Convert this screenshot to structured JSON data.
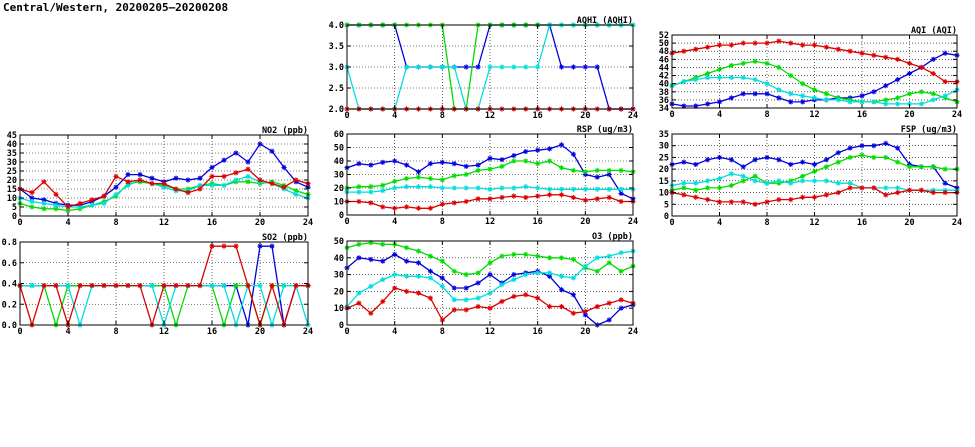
{
  "title": "Central/Western, 20200205—20200208",
  "colors": [
    "#0000dd",
    "#00dd00",
    "#00dddd",
    "#dd0000"
  ],
  "chart_data": [
    {
      "id": "aqhi",
      "type": "line",
      "title": "AQHI (AQHI)",
      "xlim": [
        0,
        24
      ],
      "xticks": [
        "0",
        "4",
        "8",
        "12",
        "16",
        "20",
        "24"
      ],
      "ylim": [
        2,
        4
      ],
      "yticks": [
        "2.0",
        "2.5",
        "3.0",
        "3.5",
        "4.0"
      ],
      "grid": true,
      "x": [
        0,
        1,
        2,
        3,
        4,
        5,
        6,
        7,
        8,
        9,
        10,
        11,
        12,
        13,
        14,
        15,
        16,
        17,
        18,
        19,
        20,
        21,
        22,
        23,
        24
      ],
      "series": [
        {
          "values": [
            4,
            4,
            4,
            4,
            4,
            3,
            3,
            3,
            3,
            3,
            3,
            3,
            4,
            4,
            4,
            4,
            4,
            4,
            3,
            3,
            3,
            3,
            2,
            2,
            2
          ]
        },
        {
          "values": [
            4,
            4,
            4,
            4,
            4,
            4,
            4,
            4,
            4,
            2,
            2,
            4,
            4,
            4,
            4,
            4,
            4,
            4,
            4,
            4,
            4,
            4,
            4,
            4,
            4
          ]
        },
        {
          "values": [
            3,
            2,
            2,
            2,
            2,
            3,
            3,
            3,
            3,
            3,
            2,
            2,
            3,
            3,
            3,
            3,
            3,
            4,
            4,
            4,
            4,
            4,
            4,
            4,
            4
          ]
        },
        {
          "values": [
            2,
            2,
            2,
            2,
            2,
            2,
            2,
            2,
            2,
            2,
            2,
            2,
            2,
            2,
            2,
            2,
            2,
            2,
            2,
            2,
            2,
            2,
            2,
            2,
            2
          ]
        }
      ]
    },
    {
      "id": "aqi",
      "type": "line",
      "title": "AQI (AQI)",
      "xlim": [
        0,
        24
      ],
      "xticks": [
        "0",
        "4",
        "8",
        "12",
        "16",
        "20",
        "24"
      ],
      "ylim": [
        34,
        52
      ],
      "yticks": [
        "34",
        "36",
        "38",
        "40",
        "42",
        "44",
        "46",
        "48",
        "50",
        "52"
      ],
      "grid": true,
      "x": [
        0,
        1,
        2,
        3,
        4,
        5,
        6,
        7,
        8,
        9,
        10,
        11,
        12,
        13,
        14,
        15,
        16,
        17,
        18,
        19,
        20,
        21,
        22,
        23,
        24
      ],
      "series": [
        {
          "values": [
            35,
            34.5,
            34.5,
            35,
            35.5,
            36.5,
            37.5,
            37.5,
            37.5,
            36.5,
            35.5,
            35.5,
            36,
            36,
            36.5,
            36.5,
            37,
            38,
            39.5,
            41,
            42.5,
            44,
            46,
            47.5,
            47
          ]
        },
        {
          "values": [
            39.5,
            40.5,
            41.5,
            42.5,
            43.5,
            44.5,
            45,
            45.5,
            45,
            44,
            42,
            40,
            38.5,
            37.5,
            36.5,
            36,
            35.5,
            35.5,
            36,
            36.5,
            37.5,
            38,
            37.5,
            36.5,
            35.5
          ]
        },
        {
          "values": [
            39.5,
            40.5,
            41,
            41.5,
            41.5,
            41.5,
            41.5,
            41,
            40,
            38.5,
            37.5,
            37,
            36.5,
            36,
            36,
            35.5,
            35.5,
            35.5,
            35,
            35,
            35,
            35,
            36,
            37,
            38.5
          ]
        },
        {
          "values": [
            47.5,
            48,
            48.5,
            49,
            49.5,
            49.5,
            50,
            50,
            50,
            50.5,
            50,
            49.5,
            49.5,
            49,
            48.5,
            48,
            47.5,
            47,
            46.5,
            46,
            45,
            44,
            42.5,
            40.5,
            40.5
          ]
        }
      ]
    },
    {
      "id": "no2",
      "type": "line",
      "title": "NO2 (ppb)",
      "xlim": [
        0,
        24
      ],
      "xticks": [
        "0",
        "4",
        "8",
        "12",
        "16",
        "20",
        "24"
      ],
      "ylim": [
        0,
        45
      ],
      "yticks": [
        "0",
        "5",
        "10",
        "15",
        "20",
        "25",
        "30",
        "35",
        "40",
        "45"
      ],
      "grid": true,
      "x": [
        0,
        1,
        2,
        3,
        4,
        5,
        6,
        7,
        8,
        9,
        10,
        11,
        12,
        13,
        14,
        15,
        16,
        17,
        18,
        19,
        20,
        21,
        22,
        23,
        24
      ],
      "series": [
        {
          "values": [
            15,
            10,
            9,
            7,
            6,
            6,
            8,
            11,
            16,
            23,
            23,
            21,
            19,
            21,
            20,
            21,
            27,
            31,
            35,
            30,
            40,
            36,
            27,
            19,
            16
          ]
        },
        {
          "values": [
            7,
            5,
            4,
            4,
            3,
            4,
            6,
            8,
            11,
            18,
            19,
            18,
            17,
            15,
            15,
            17,
            18,
            17,
            19,
            19,
            18,
            19,
            17,
            14,
            12
          ]
        },
        {
          "values": [
            10,
            8,
            7,
            6,
            5,
            5,
            6,
            7,
            12,
            17,
            20,
            18,
            16,
            14,
            14,
            17,
            17,
            17,
            20,
            22,
            19,
            18,
            15,
            12,
            10
          ]
        },
        {
          "values": [
            15,
            13,
            19,
            12,
            5,
            7,
            9,
            11,
            22,
            19,
            20,
            18,
            18,
            15,
            13,
            15,
            22,
            22,
            24,
            26,
            20,
            18,
            16,
            20,
            18
          ]
        }
      ]
    },
    {
      "id": "rsp",
      "type": "line",
      "title": "RSP (ug/m3)",
      "xlim": [
        0,
        24
      ],
      "xticks": [
        "0",
        "4",
        "8",
        "12",
        "16",
        "20",
        "24"
      ],
      "ylim": [
        0,
        60
      ],
      "yticks": [
        "0",
        "10",
        "20",
        "30",
        "40",
        "50",
        "60"
      ],
      "grid": true,
      "x": [
        0,
        1,
        2,
        3,
        4,
        5,
        6,
        7,
        8,
        9,
        10,
        11,
        12,
        13,
        14,
        15,
        16,
        17,
        18,
        19,
        20,
        21,
        22,
        23,
        24
      ],
      "series": [
        {
          "values": [
            35,
            38,
            37,
            39,
            40,
            37,
            32,
            38,
            39,
            38,
            36,
            37,
            42,
            41,
            44,
            47,
            48,
            49,
            52,
            45,
            30,
            28,
            30,
            16,
            12
          ]
        },
        {
          "values": [
            20,
            21,
            21,
            22,
            25,
            27,
            28,
            27,
            26,
            29,
            30,
            33,
            34,
            36,
            40,
            40,
            38,
            40,
            35,
            33,
            32,
            33,
            33,
            33,
            32
          ]
        },
        {
          "values": [
            17,
            17,
            17,
            18,
            20,
            21,
            21,
            21,
            20,
            20,
            20,
            20,
            19,
            20,
            20,
            21,
            20,
            19,
            19,
            19,
            19,
            19,
            19,
            19,
            19
          ]
        },
        {
          "values": [
            10,
            10,
            9,
            6,
            5,
            6,
            5,
            5,
            8,
            9,
            10,
            12,
            12,
            13,
            14,
            13,
            14,
            15,
            15,
            13,
            11,
            12,
            13,
            10,
            10
          ]
        }
      ]
    },
    {
      "id": "fsp",
      "type": "line",
      "title": "FSP (ug/m3)",
      "xlim": [
        0,
        24
      ],
      "xticks": [
        "0",
        "4",
        "8",
        "12",
        "16",
        "20",
        "24"
      ],
      "ylim": [
        0,
        35
      ],
      "yticks": [
        "0",
        "5",
        "10",
        "15",
        "20",
        "25",
        "30",
        "35"
      ],
      "grid": true,
      "x": [
        0,
        1,
        2,
        3,
        4,
        5,
        6,
        7,
        8,
        9,
        10,
        11,
        12,
        13,
        14,
        15,
        16,
        17,
        18,
        19,
        20,
        21,
        22,
        23,
        24
      ],
      "series": [
        {
          "values": [
            22,
            23,
            22,
            24,
            25,
            24,
            21,
            24,
            25,
            24,
            22,
            23,
            22,
            24,
            27,
            29,
            30,
            30,
            31,
            29,
            22,
            21,
            21,
            14,
            12
          ]
        },
        {
          "values": [
            11,
            12,
            11,
            12,
            12,
            13,
            15,
            17,
            14,
            14,
            15,
            17,
            19,
            21,
            23,
            25,
            26,
            25,
            25,
            23,
            21,
            21,
            21,
            20,
            20
          ]
        },
        {
          "values": [
            13,
            14,
            14,
            15,
            16,
            18,
            17,
            15,
            14,
            15,
            14,
            15,
            15,
            15,
            14,
            14,
            12,
            12,
            12,
            12,
            11,
            11,
            11,
            11,
            11
          ]
        },
        {
          "values": [
            10,
            9,
            8,
            7,
            6,
            6,
            6,
            5,
            6,
            7,
            7,
            8,
            8,
            9,
            10,
            12,
            12,
            12,
            9,
            10,
            11,
            11,
            10,
            10,
            10
          ]
        }
      ]
    },
    {
      "id": "so2",
      "type": "line",
      "title": "SO2 (ppb)",
      "xlim": [
        0,
        24
      ],
      "xticks": [
        "0",
        "4",
        "8",
        "12",
        "16",
        "20",
        "24"
      ],
      "ylim": [
        0,
        0.8
      ],
      "yticks": [
        "0.0",
        "0.2",
        "0.4",
        "0.6",
        "0.8"
      ],
      "grid": true,
      "x": [
        0,
        1,
        2,
        3,
        4,
        5,
        6,
        7,
        8,
        9,
        10,
        11,
        12,
        13,
        14,
        15,
        16,
        17,
        18,
        19,
        20,
        21,
        22,
        23,
        24
      ],
      "series": [
        {
          "values": [
            0.38,
            0.38,
            0.38,
            0.38,
            0.38,
            0.38,
            0.38,
            0.38,
            0.38,
            0.38,
            0.38,
            0.38,
            0.38,
            0.38,
            0.38,
            0.38,
            0.38,
            0.38,
            0.38,
            0,
            0.76,
            0.76,
            0,
            0.38,
            0.38
          ]
        },
        {
          "values": [
            0.38,
            0.38,
            0.38,
            0,
            0.38,
            0.38,
            0.38,
            0.38,
            0.38,
            0.38,
            0.38,
            0.38,
            0.38,
            0,
            0.38,
            0.38,
            0.38,
            0,
            0.38,
            0.38,
            0,
            0.38,
            0.38,
            0.38,
            0.38
          ]
        },
        {
          "values": [
            0.38,
            0.38,
            0.38,
            0.38,
            0.38,
            0,
            0.38,
            0.38,
            0.38,
            0.38,
            0.38,
            0.38,
            0,
            0.38,
            0.38,
            0.38,
            0.38,
            0.38,
            0,
            0.38,
            0.38,
            0,
            0.38,
            0.38,
            0
          ]
        },
        {
          "values": [
            0.38,
            0,
            0.38,
            0.38,
            0,
            0.38,
            0.38,
            0.38,
            0.38,
            0.38,
            0.38,
            0,
            0.38,
            0.38,
            0.38,
            0.38,
            0.76,
            0.76,
            0.76,
            0.38,
            0,
            0.38,
            0,
            0.38,
            0.38
          ]
        }
      ]
    },
    {
      "id": "o3",
      "type": "line",
      "title": "O3 (ppb)",
      "xlim": [
        0,
        24
      ],
      "xticks": [
        "0",
        "4",
        "8",
        "12",
        "16",
        "20",
        "24"
      ],
      "ylim": [
        0,
        50
      ],
      "yticks": [
        "0",
        "10",
        "20",
        "30",
        "40",
        "50"
      ],
      "grid": true,
      "x": [
        0,
        1,
        2,
        3,
        4,
        5,
        6,
        7,
        8,
        9,
        10,
        11,
        12,
        13,
        14,
        15,
        16,
        17,
        18,
        19,
        20,
        21,
        22,
        23,
        24
      ],
      "series": [
        {
          "values": [
            34,
            40,
            39,
            38,
            42,
            38,
            37,
            32,
            28,
            22,
            22,
            25,
            30,
            25,
            30,
            31,
            32,
            29,
            21,
            18,
            6,
            0,
            3,
            10,
            12
          ]
        },
        {
          "values": [
            46,
            48,
            49,
            48,
            48,
            46,
            44,
            41,
            38,
            32,
            30,
            31,
            37,
            41,
            42,
            42,
            41,
            40,
            40,
            39,
            34,
            32,
            37,
            32,
            35
          ]
        },
        {
          "values": [
            11,
            19,
            23,
            27,
            30,
            29,
            29,
            28,
            23,
            15,
            15,
            16,
            19,
            24,
            27,
            30,
            31,
            31,
            29,
            28,
            35,
            40,
            41,
            43,
            44
          ]
        },
        {
          "values": [
            10,
            13,
            7,
            14,
            22,
            20,
            19,
            16,
            3,
            9,
            9,
            11,
            10,
            14,
            17,
            18,
            16,
            11,
            11,
            7,
            8,
            11,
            13,
            15,
            13
          ]
        }
      ]
    }
  ]
}
